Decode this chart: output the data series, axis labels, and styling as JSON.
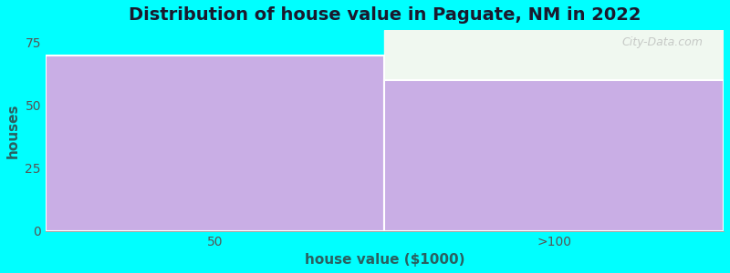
{
  "categories": [
    "50",
    ">100"
  ],
  "values": [
    70,
    60
  ],
  "bar_color": "#c9aee5",
  "background_color": "#00ffff",
  "plot_bg_color": "#00ffff",
  "title": "Distribution of house value in Paguate, NM in 2022",
  "xlabel": "house value ($1000)",
  "ylabel": "houses",
  "ylim": [
    0,
    80
  ],
  "yticks": [
    0,
    25,
    50,
    75
  ],
  "title_fontsize": 14,
  "label_fontsize": 11,
  "tick_fontsize": 10,
  "watermark_text": "City-Data.com",
  "bar_edge_color": "white",
  "upper_right_bg": "#f0f8f0"
}
